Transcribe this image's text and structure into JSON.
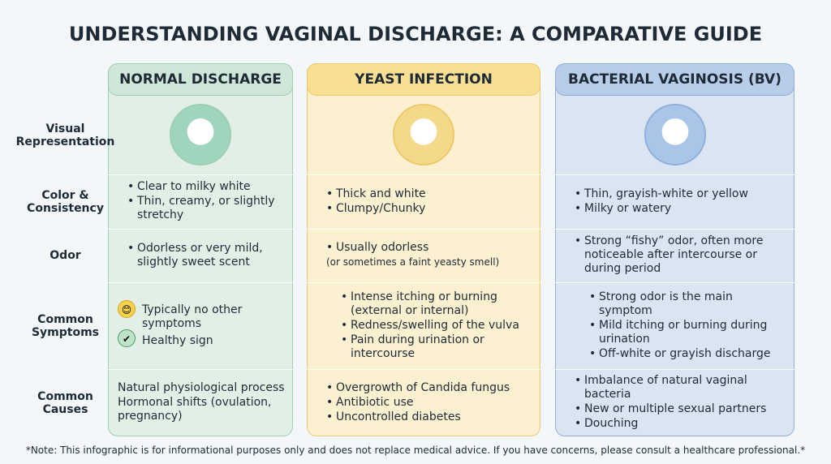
{
  "title": "UNDERSTANDING VAGINAL DISCHARGE: A COMPARATIVE GUIDE",
  "columns": [
    "NORMAL DISCHARGE",
    "YEAST INFECTION",
    "BACTERIAL VAGINOSIS (BV)"
  ],
  "rows": [
    {
      "label": "Visual Representation",
      "cells": [
        [],
        [],
        []
      ]
    },
    {
      "label": "Color & Consistency",
      "cells": [
        [
          "Clear to milky white",
          "Thin, creamy, or slightly stretchy"
        ],
        [
          "Thick and white",
          "Clumpy/Chunky"
        ],
        [
          "Thin, grayish-white or yellow",
          "Milky or watery"
        ]
      ]
    },
    {
      "label": "Odor",
      "cells": [
        [
          "Odorless or very mild, slightly sweet scent"
        ],
        [
          "Usually odorless",
          "(or sometimes a faint yeasty smell)"
        ],
        [
          "Strong “fishy” odor, often more noticeable after intercourse or during period"
        ]
      ]
    },
    {
      "label": "Common Symptoms",
      "cells": [
        [
          "Typically no other symptoms",
          "Healthy sign"
        ],
        [
          "Intense itching or burning (external or internal)",
          "Redness/swelling of the vulva",
          "Pain during urination or intercourse"
        ],
        [
          "Strong odor is the main symptom",
          "Mild itching or burning during urination",
          "Off-white or grayish discharge"
        ]
      ]
    },
    {
      "label": "Common Causes",
      "cells": [
        [
          "Natural physiological process",
          "Hormonal shifts (ovulation, pregnancy)"
        ],
        [
          "Overgrowth of Candida fungus",
          "Antibiotic use",
          "Uncontrolled diabetes"
        ],
        [
          "Imbalance of natural vaginal bacteria",
          "New or multiple sexual partners",
          "Douching"
        ]
      ]
    }
  ],
  "note": "*Note: This infographic is for informational purposes only and does not replace medical advice. If you have concerns, please consult a healthcare professional.*"
}
